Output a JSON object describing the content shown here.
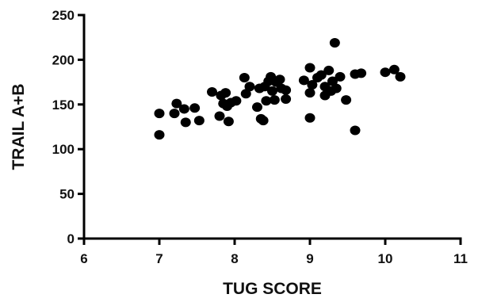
{
  "chart_data": {
    "type": "scatter",
    "title": "",
    "xlabel": "TUG SCORE",
    "ylabel": "TRAIL A+B",
    "xlim": [
      6,
      11
    ],
    "ylim": [
      0,
      250
    ],
    "xticks": [
      "6",
      "7",
      "8",
      "9",
      "10",
      "11"
    ],
    "yticks": [
      "0",
      "50",
      "100",
      "150",
      "200",
      "250"
    ],
    "grid": false,
    "marker_color": "#000000",
    "series": [
      {
        "points": [
          [
            7.0,
            140
          ],
          [
            7.0,
            116
          ],
          [
            7.2,
            140
          ],
          [
            7.23,
            151
          ],
          [
            7.33,
            145
          ],
          [
            7.35,
            130
          ],
          [
            7.47,
            146
          ],
          [
            7.53,
            132
          ],
          [
            7.7,
            164
          ],
          [
            7.8,
            137
          ],
          [
            7.82,
            160
          ],
          [
            7.85,
            151
          ],
          [
            7.88,
            163
          ],
          [
            7.9,
            148
          ],
          [
            7.92,
            131
          ],
          [
            7.95,
            152
          ],
          [
            8.02,
            154
          ],
          [
            8.13,
            180
          ],
          [
            8.15,
            162
          ],
          [
            8.2,
            170
          ],
          [
            8.3,
            147
          ],
          [
            8.33,
            168
          ],
          [
            8.35,
            134
          ],
          [
            8.38,
            132
          ],
          [
            8.4,
            170
          ],
          [
            8.42,
            154
          ],
          [
            8.45,
            176
          ],
          [
            8.48,
            181
          ],
          [
            8.5,
            165
          ],
          [
            8.53,
            155
          ],
          [
            8.55,
            175
          ],
          [
            8.6,
            178
          ],
          [
            8.62,
            168
          ],
          [
            8.68,
            166
          ],
          [
            8.68,
            156
          ],
          [
            8.92,
            177
          ],
          [
            9.0,
            191
          ],
          [
            9.0,
            163
          ],
          [
            9.0,
            135
          ],
          [
            9.03,
            172
          ],
          [
            9.1,
            180
          ],
          [
            9.15,
            183
          ],
          [
            9.2,
            160
          ],
          [
            9.2,
            170
          ],
          [
            9.25,
            188
          ],
          [
            9.28,
            165
          ],
          [
            9.3,
            176
          ],
          [
            9.33,
            219
          ],
          [
            9.35,
            168
          ],
          [
            9.4,
            181
          ],
          [
            9.48,
            155
          ],
          [
            9.6,
            121
          ],
          [
            9.6,
            184
          ],
          [
            9.68,
            185
          ],
          [
            10.0,
            186
          ],
          [
            10.12,
            189
          ],
          [
            10.2,
            181
          ]
        ]
      }
    ]
  }
}
